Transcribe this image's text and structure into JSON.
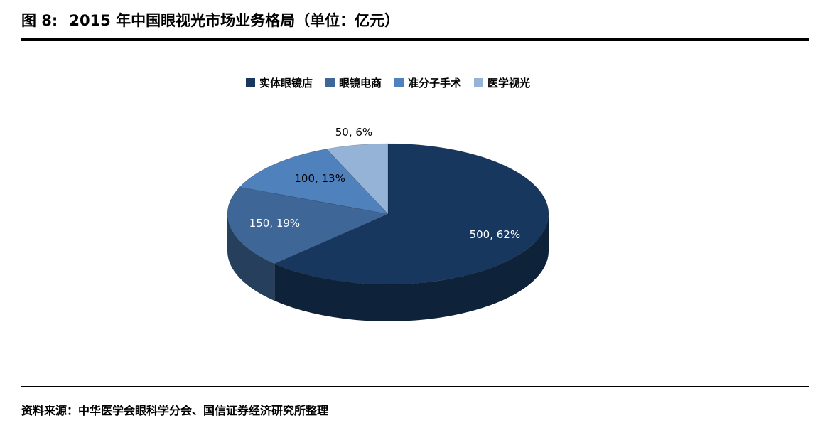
{
  "title": {
    "prefix": "图 8:",
    "text": "2015 年中国眼视光市场业务格局（单位：亿元）"
  },
  "footer": {
    "source_label": "资料来源：",
    "source_text": "中华医学会眼科学分会、国信证券经济研究所整理"
  },
  "chart_data": {
    "type": "pie",
    "style": "3d",
    "title": "2015 年中国眼视光市场业务格局（单位：亿元）",
    "unit": "亿元",
    "legend_position": "top",
    "start_angle_deg": 0,
    "direction": "clockwise",
    "slices": [
      {
        "label": "实体眼镜店",
        "value": 500,
        "percent": 62,
        "data_label": "500, 62%",
        "color": "#17375E",
        "label_color": "#FFFFFF"
      },
      {
        "label": "眼镜电商",
        "value": 150,
        "percent": 19,
        "data_label": "150, 19%",
        "color": "#3E6696",
        "label_color": "#FFFFFF"
      },
      {
        "label": "准分子手术",
        "value": 100,
        "percent": 13,
        "data_label": "100, 13%",
        "color": "#4F81BD",
        "label_color": "#000000"
      },
      {
        "label": "医学视光",
        "value": 50,
        "percent": 6,
        "data_label": "50, 6%",
        "color": "#95B3D7",
        "label_color": "#000000"
      }
    ]
  }
}
